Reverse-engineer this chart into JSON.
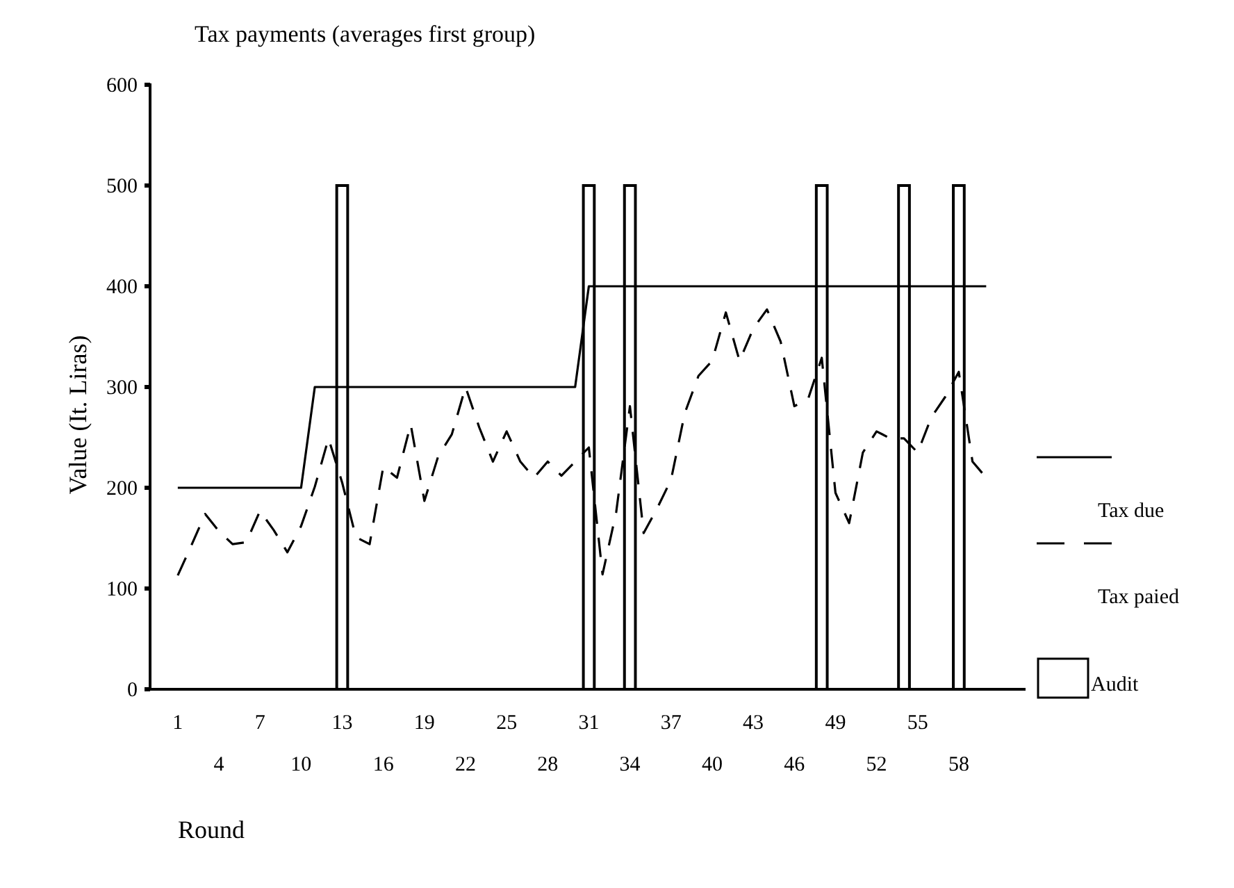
{
  "chart_data": {
    "type": "bar",
    "title": "Tax payments (averages first group)",
    "xlabel": "Round",
    "ylabel": "Value (It. Liras)",
    "categories": [
      "1",
      null,
      null,
      "4",
      null,
      null,
      "7",
      null,
      null,
      "10",
      null,
      null,
      "13",
      null,
      null,
      "16",
      null,
      null,
      "19",
      null,
      null,
      "22",
      null,
      null,
      "25",
      null,
      null,
      "28",
      null,
      null,
      "31",
      null,
      null,
      "34",
      null,
      null,
      "37",
      null,
      null,
      "40",
      null,
      null,
      "43",
      null,
      null,
      "46",
      null,
      null,
      "49",
      null,
      null,
      "52",
      null,
      null,
      "55",
      null,
      null,
      "58",
      null,
      null
    ],
    "series": [
      {
        "name": "Tax due",
        "type": "line",
        "color": "#000000",
        "line_style": "solid",
        "values": [
          200,
          200,
          200,
          200,
          200,
          200,
          200,
          200,
          200,
          200,
          300,
          300,
          300,
          300,
          300,
          300,
          300,
          300,
          300,
          300,
          300,
          300,
          300,
          300,
          300,
          300,
          300,
          300,
          300,
          300,
          400,
          400,
          400,
          400,
          400,
          400,
          400,
          400,
          400,
          400,
          400,
          400,
          400,
          400,
          400,
          400,
          400,
          400,
          400,
          400,
          400,
          400,
          400,
          400,
          400,
          400,
          400,
          400,
          400,
          400
        ]
      },
      {
        "name": "Tax paied",
        "type": "line",
        "color": "#000000",
        "line_style": "dashed",
        "values": [
          113,
          143,
          174,
          157,
          144,
          146,
          177,
          158,
          136,
          162,
          201,
          249,
          205,
          151,
          144,
          221,
          210,
          263,
          187,
          231,
          253,
          300,
          260,
          226,
          256,
          226,
          210,
          226,
          212,
          226,
          240,
          114,
          176,
          281,
          155,
          180,
          208,
          274,
          311,
          326,
          374,
          326,
          358,
          377,
          345,
          281,
          288,
          329,
          195,
          165,
          235,
          256,
          249,
          249,
          235,
          270,
          290,
          315,
          226,
          210
        ]
      },
      {
        "name": "Audit",
        "color": "#ffffff",
        "values": [
          0,
          0,
          0,
          0,
          0,
          0,
          0,
          0,
          0,
          0,
          0,
          0,
          500,
          0,
          0,
          0,
          0,
          0,
          0,
          0,
          0,
          0,
          0,
          0,
          0,
          0,
          0,
          0,
          0,
          0,
          500,
          0,
          0,
          500,
          0,
          0,
          0,
          0,
          0,
          0,
          0,
          0,
          0,
          0,
          0,
          0,
          0,
          500,
          0,
          0,
          0,
          0,
          0,
          500,
          0,
          0,
          0,
          500,
          0,
          0
        ]
      }
    ],
    "ylim": [
      0,
      600
    ],
    "yticks": [
      0,
      100,
      200,
      300,
      400,
      500,
      600
    ],
    "grid": false,
    "legend": "right"
  }
}
